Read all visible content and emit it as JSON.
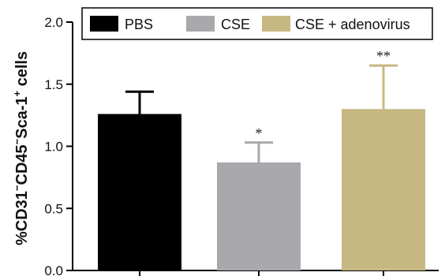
{
  "chart_data": {
    "type": "bar",
    "categories": [
      "PBS",
      "CSE",
      "CSE + adenovirus"
    ],
    "values": [
      1.26,
      0.87,
      1.3
    ],
    "errors": [
      0.18,
      0.16,
      0.35
    ],
    "significance": [
      "",
      "*",
      "**"
    ],
    "colors": [
      "#000000",
      "#a8a8ad",
      "#c7b882"
    ],
    "ylabel": {
      "prefix": "%CD31",
      "sup1": "−",
      "mid1": "CD45",
      "sup2": "−",
      "mid2": "Sca-1",
      "sup3": "+",
      "suffix": " cells"
    },
    "ylim": [
      0,
      2.0
    ],
    "yticks": [
      "0.0",
      "0.5",
      "1.0",
      "1.5",
      "2.0"
    ],
    "legend": {
      "position": "top",
      "entries": [
        "PBS",
        "CSE",
        "CSE + adenovirus"
      ]
    },
    "grid": false
  }
}
